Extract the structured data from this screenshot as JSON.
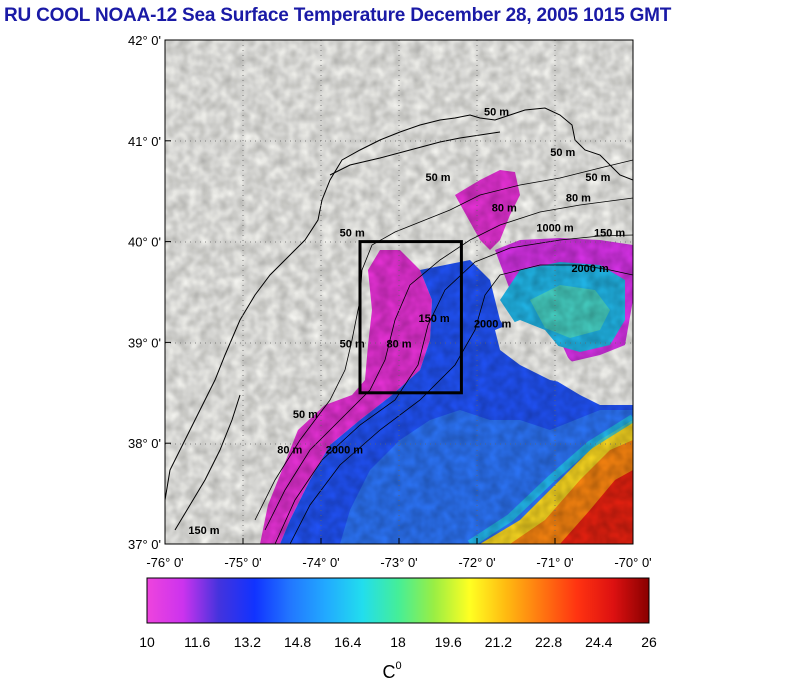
{
  "title": "RU COOL  NOAA-12 Sea Surface Temperature December 28, 2005 1015 GMT",
  "map": {
    "lat_labels": [
      "42° 0'",
      "41° 0'",
      "40° 0'",
      "39° 0'",
      "38° 0'",
      "37° 0'"
    ],
    "lon_labels": [
      "-76° 0'",
      "-75° 0'",
      "-74° 0'",
      "-73° 0'",
      "-72° 0'",
      "-71° 0'",
      "-70° 0'"
    ],
    "lat_range": [
      37,
      42
    ],
    "lon_range": [
      -76,
      -70
    ],
    "region_box": {
      "lon_min": -73.5,
      "lon_max": -72.2,
      "lat_min": 38.5,
      "lat_max": 40.0
    },
    "contour_labels": [
      {
        "text": "50 m",
        "lon": -71.75,
        "lat": 41.25
      },
      {
        "text": "50 m",
        "lon": -72.5,
        "lat": 40.6
      },
      {
        "text": "50 m",
        "lon": -70.9,
        "lat": 40.85
      },
      {
        "text": "50 m",
        "lon": -70.45,
        "lat": 40.6
      },
      {
        "text": "50 m",
        "lon": -73.6,
        "lat": 40.05
      },
      {
        "text": "80 m",
        "lon": -71.65,
        "lat": 40.3
      },
      {
        "text": "1000 m",
        "lon": -71.0,
        "lat": 40.1
      },
      {
        "text": "80 m",
        "lon": -70.7,
        "lat": 40.4
      },
      {
        "text": "150 m",
        "lon": -70.3,
        "lat": 40.05
      },
      {
        "text": "2000 m",
        "lon": -70.55,
        "lat": 39.7
      },
      {
        "text": "2000 m",
        "lon": -71.8,
        "lat": 39.15
      },
      {
        "text": "150 m",
        "lon": -72.55,
        "lat": 39.2
      },
      {
        "text": "80 m",
        "lon": -73.0,
        "lat": 38.95
      },
      {
        "text": "50 m",
        "lon": -73.6,
        "lat": 38.95
      },
      {
        "text": "50 m",
        "lon": -74.2,
        "lat": 38.25
      },
      {
        "text": "80 m",
        "lon": -74.4,
        "lat": 37.9
      },
      {
        "text": "2000 m",
        "lon": -73.7,
        "lat": 37.9
      },
      {
        "text": "150 m",
        "lon": -75.5,
        "lat": 37.1
      }
    ]
  },
  "colorbar": {
    "tick_labels": [
      "10",
      "11.6",
      "13.2",
      "14.8",
      "16.4",
      "18",
      "19.6",
      "21.2",
      "22.8",
      "24.4",
      "26"
    ],
    "min": 10,
    "max": 26,
    "unit_label": "C",
    "unit_superscript": "0",
    "colors": [
      "#ee44dd",
      "#cc33ee",
      "#4433dd",
      "#1133ff",
      "#2277ff",
      "#22aaff",
      "#22ddee",
      "#44ee99",
      "#99ee44",
      "#ffff22",
      "#ffbb11",
      "#ff7711",
      "#ff3311",
      "#dd1111",
      "#880000"
    ]
  }
}
